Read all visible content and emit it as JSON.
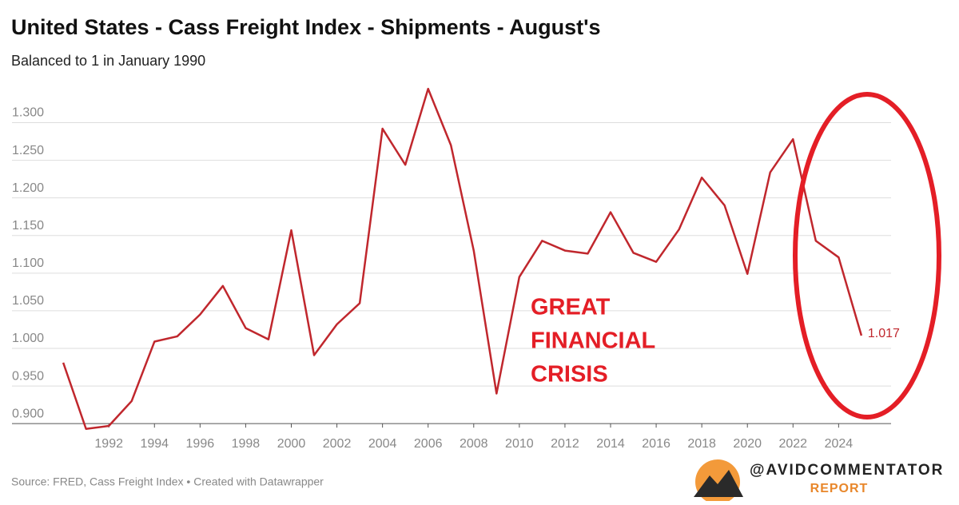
{
  "chart_data": {
    "type": "line",
    "title": "United States - Cass Freight Index - Shipments - August's",
    "subtitle": "Balanced to 1 in January 1990",
    "x": [
      1990,
      1991,
      1992,
      1993,
      1994,
      1995,
      1996,
      1997,
      1998,
      1999,
      2000,
      2001,
      2002,
      2003,
      2004,
      2005,
      2006,
      2007,
      2008,
      2009,
      2010,
      2011,
      2012,
      2013,
      2014,
      2015,
      2016,
      2017,
      2018,
      2019,
      2020,
      2021,
      2022,
      2023,
      2024,
      2025
    ],
    "series": [
      {
        "name": "Shipments",
        "color": "#c0272d",
        "values": [
          0.981,
          0.893,
          0.897,
          0.93,
          1.009,
          1.016,
          1.045,
          1.083,
          1.027,
          1.012,
          1.157,
          0.991,
          1.032,
          1.06,
          1.292,
          1.244,
          1.345,
          1.27,
          1.13,
          0.94,
          1.095,
          1.143,
          1.13,
          1.126,
          1.181,
          1.127,
          1.115,
          1.158,
          1.227,
          1.19,
          1.099,
          1.234,
          1.278,
          1.143,
          1.121,
          1.017
        ]
      }
    ],
    "xlim": [
      1989.4,
      2026.3
    ],
    "xticks": [
      1992,
      1994,
      1996,
      1998,
      2000,
      2002,
      2004,
      2006,
      2008,
      2010,
      2012,
      2014,
      2016,
      2018,
      2020,
      2022,
      2024
    ],
    "ylim": [
      0.88,
      1.36
    ],
    "yticks": [
      {
        "value": 0.9,
        "label": "0.900"
      },
      {
        "value": 0.95,
        "label": "0.950"
      },
      {
        "value": 1.0,
        "label": "1.000"
      },
      {
        "value": 1.05,
        "label": "1.050"
      },
      {
        "value": 1.1,
        "label": "1.100"
      },
      {
        "value": 1.15,
        "label": "1.150"
      },
      {
        "value": 1.2,
        "label": "1.200"
      },
      {
        "value": 1.25,
        "label": "1.250"
      },
      {
        "value": 1.3,
        "label": "1.300"
      }
    ],
    "grid": true,
    "annotation": [
      "GREAT",
      "FINANCIAL",
      "CRISIS"
    ],
    "source": "Source: FRED, Cass Freight Index • Created with Datawrapper",
    "logo": [
      "@AVIDCOMMENTATOR",
      "REPORT"
    ]
  }
}
